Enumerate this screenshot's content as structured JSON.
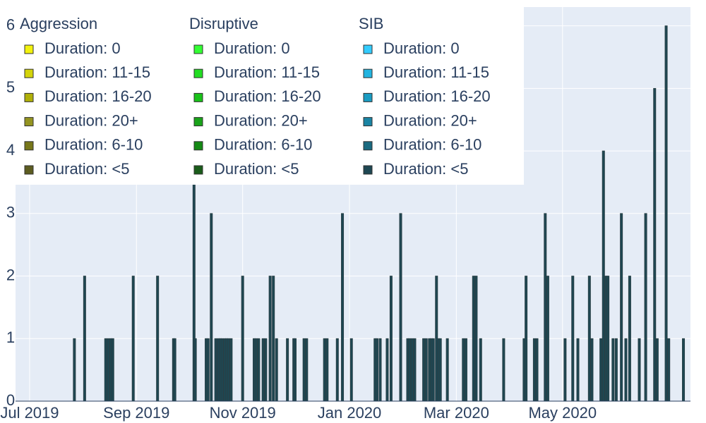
{
  "chart_data": {
    "type": "bar",
    "barmode": "stack",
    "xlim": [
      2019.478,
      2020.533
    ],
    "xticks": [
      {
        "value": 2019.5,
        "label": "Jul 2019"
      },
      {
        "value": 2019.667,
        "label": "Sep 2019"
      },
      {
        "value": 2019.833,
        "label": "Nov 2019"
      },
      {
        "value": 2020.0,
        "label": "Jan 2020"
      },
      {
        "value": 2020.167,
        "label": "Mar 2020"
      },
      {
        "value": 2020.333,
        "label": "May 2020"
      }
    ],
    "ylim": [
      0,
      6.3
    ],
    "yticks": [
      0,
      1,
      2,
      3,
      4,
      5,
      6
    ],
    "grid": true,
    "legend_position": "top-left",
    "groups": [
      {
        "name": "Aggression",
        "series": [
          {
            "name": "Duration: 0",
            "color": "#f2f20d",
            "x": [],
            "values": []
          },
          {
            "name": "Duration: 11-15",
            "color": "#d4d40a",
            "x": [],
            "values": []
          },
          {
            "name": "Duration: 16-20",
            "color": "#b0b008",
            "x": [],
            "values": []
          },
          {
            "name": "Duration: 20+",
            "color": "#949420",
            "x": [],
            "values": []
          },
          {
            "name": "Duration: 6-10",
            "color": "#77771a",
            "x": [],
            "values": []
          },
          {
            "name": "Duration: <5",
            "color": "#5c5c20",
            "x": [],
            "values": []
          }
        ]
      },
      {
        "name": "Disruptive",
        "series": [
          {
            "name": "Duration: 0",
            "color": "#33ff33",
            "x": [],
            "values": []
          },
          {
            "name": "Duration: 11-15",
            "color": "#22dd22",
            "x": [],
            "values": []
          },
          {
            "name": "Duration: 16-20",
            "color": "#19c219",
            "x": [],
            "values": []
          },
          {
            "name": "Duration: 20+",
            "color": "#1aa31a",
            "x": [],
            "values": []
          },
          {
            "name": "Duration: 6-10",
            "color": "#148a14",
            "x": [],
            "values": []
          },
          {
            "name": "Duration: <5",
            "color": "#1a5c1a",
            "x": [],
            "values": []
          }
        ]
      },
      {
        "name": "SIB",
        "series": [
          {
            "name": "Duration: 0",
            "color": "#33ccff",
            "x": [],
            "values": []
          },
          {
            "name": "Duration: 11-15",
            "color": "#22b4e0",
            "x": [],
            "values": []
          },
          {
            "name": "Duration: 16-20",
            "color": "#1a9cc2",
            "x": [],
            "values": []
          },
          {
            "name": "Duration: 20+",
            "color": "#1a84a3",
            "x": [],
            "values": []
          },
          {
            "name": "Duration: 6-10",
            "color": "#1a6a80",
            "x": [],
            "values": []
          },
          {
            "name": "Duration: <5",
            "color": "#1e4752",
            "x": [
              2019.57,
              2019.586,
              2019.619,
              2019.623,
              2019.627,
              2019.63,
              2019.662,
              2019.7,
              2019.725,
              2019.727,
              2019.757,
              2019.759,
              2019.776,
              2019.779,
              2019.784,
              2019.791,
              2019.795,
              2019.798,
              2019.801,
              2019.805,
              2019.808,
              2019.811,
              2019.815,
              2019.833,
              2019.851,
              2019.854,
              2019.858,
              2019.865,
              2019.869,
              2019.876,
              2019.881,
              2019.886,
              2019.903,
              2019.913,
              2019.915,
              2019.929,
              2019.933,
              2019.961,
              2019.965,
              2019.981,
              2019.989,
              2020.003,
              2020.04,
              2020.043,
              2020.048,
              2020.059,
              2020.065,
              2020.08,
              2020.091,
              2020.094,
              2020.098,
              2020.102,
              2020.116,
              2020.12,
              2020.125,
              2020.128,
              2020.131,
              2020.136,
              2020.139,
              2020.142,
              2020.153,
              2020.178,
              2020.182,
              2020.194,
              2020.198,
              2020.205,
              2020.241,
              2020.273,
              2020.276,
              2020.289,
              2020.293,
              2020.306,
              2020.31,
              2020.337,
              2020.349,
              2020.357,
              2020.375,
              2020.379,
              2020.393,
              2020.397,
              2020.401,
              2020.404,
              2020.412,
              2020.417,
              2020.425,
              2020.432,
              2020.438,
              2020.453,
              2020.463,
              2020.477,
              2020.481,
              2020.495,
              2020.499,
              2020.522
            ],
            "values": [
              1,
              2,
              1,
              1,
              1,
              1,
              2,
              2,
              1,
              1,
              4,
              1,
              1,
              1,
              3,
              1,
              1,
              1,
              1,
              1,
              1,
              1,
              1,
              2,
              1,
              1,
              1,
              1,
              1,
              2,
              2,
              1,
              1,
              1,
              1,
              1,
              1,
              1,
              1,
              1,
              3,
              1,
              1,
              1,
              1,
              1,
              2,
              3,
              1,
              1,
              1,
              1,
              1,
              1,
              1,
              1,
              1,
              2,
              1,
              1,
              1,
              1,
              1,
              2,
              2,
              1,
              1,
              1,
              2,
              1,
              1,
              3,
              2,
              1,
              2,
              1,
              2,
              1,
              1,
              4,
              2,
              2,
              1,
              1,
              3,
              1,
              2,
              1,
              3,
              5,
              1,
              6,
              1,
              1
            ]
          }
        ]
      }
    ]
  }
}
